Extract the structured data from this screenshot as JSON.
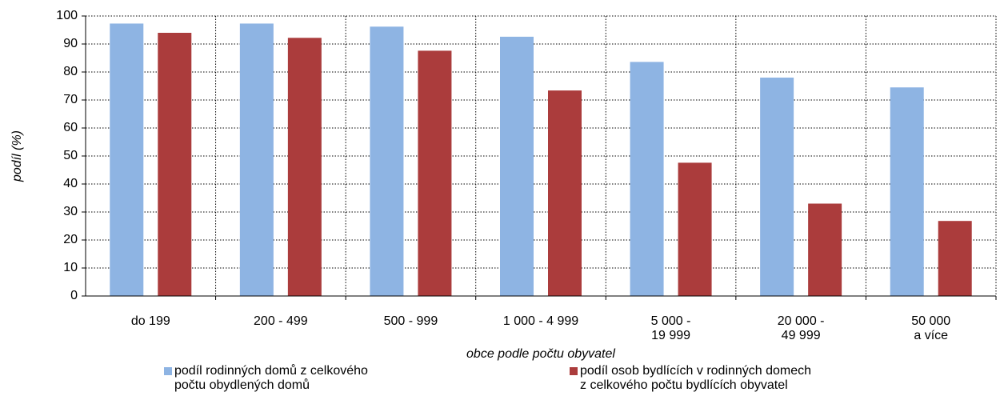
{
  "chart_data": {
    "type": "bar",
    "categories": [
      "do 199",
      "200 - 499",
      "500 - 999",
      "1 000 - 4 999",
      "5 000 -\n19 999",
      "20 000 -\n49 999",
      "50 000\na více"
    ],
    "series": [
      {
        "name": "podíl rodinných domů z celkového\npočtu obydlených domů",
        "color": "#8eb4e3",
        "values": [
          97.3,
          97.3,
          96.2,
          92.6,
          83.6,
          78,
          74.5
        ]
      },
      {
        "name": "podíl osob bydlících v rodinných domech\nz celkového počtu bydlících obyvatel",
        "color": "#ab3c3c",
        "values": [
          94,
          92.2,
          87.6,
          73.4,
          47.6,
          33,
          26.8
        ]
      }
    ],
    "x_label": "obce podle počtu obyvatel",
    "y_label": "podíl (%)",
    "ylim": [
      0,
      100
    ],
    "yticks": [
      0,
      10,
      20,
      30,
      40,
      50,
      60,
      70,
      80,
      90,
      100
    ],
    "grid": true
  }
}
